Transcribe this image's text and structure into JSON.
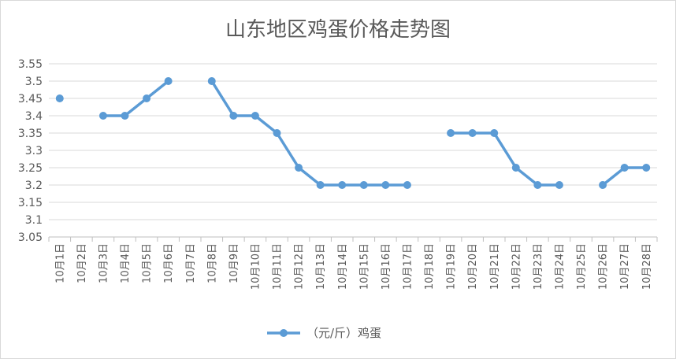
{
  "chart_data": {
    "type": "line",
    "title": "山东地区鸡蛋价格走势图",
    "xlabel": "",
    "ylabel": "",
    "categories": [
      "10月1日",
      "10月2日",
      "10月3日",
      "10月4日",
      "10月5日",
      "10月6日",
      "10月7日",
      "10月8日",
      "10月9日",
      "10月10日",
      "10月11日",
      "10月12日",
      "10月13日",
      "10月14日",
      "10月15日",
      "10月16日",
      "10月17日",
      "10月18日",
      "10月19日",
      "10月20日",
      "10月21日",
      "10月22日",
      "10月23日",
      "10月24日",
      "10月25日",
      "10月26日",
      "10月27日",
      "10月28日"
    ],
    "series": [
      {
        "name": "（元/斤）鸡蛋",
        "values": [
          3.45,
          null,
          3.4,
          3.4,
          3.45,
          3.5,
          null,
          3.5,
          3.4,
          3.4,
          3.35,
          3.25,
          3.2,
          3.2,
          3.2,
          3.2,
          3.2,
          null,
          3.35,
          3.35,
          3.35,
          3.25,
          3.2,
          3.2,
          null,
          3.2,
          3.25,
          3.25
        ]
      }
    ],
    "yticks": [
      "3.05",
      "3.1",
      "3.15",
      "3.2",
      "3.25",
      "3.3",
      "3.35",
      "3.4",
      "3.45",
      "3.5",
      "3.55"
    ],
    "ylim": [
      3.05,
      3.55
    ],
    "grid": true,
    "legend_position": "bottom",
    "colors": {
      "line": "#5b9bd5",
      "grid": "#d9d9d9",
      "axis": "#bfbfbf",
      "text": "#595959"
    }
  }
}
